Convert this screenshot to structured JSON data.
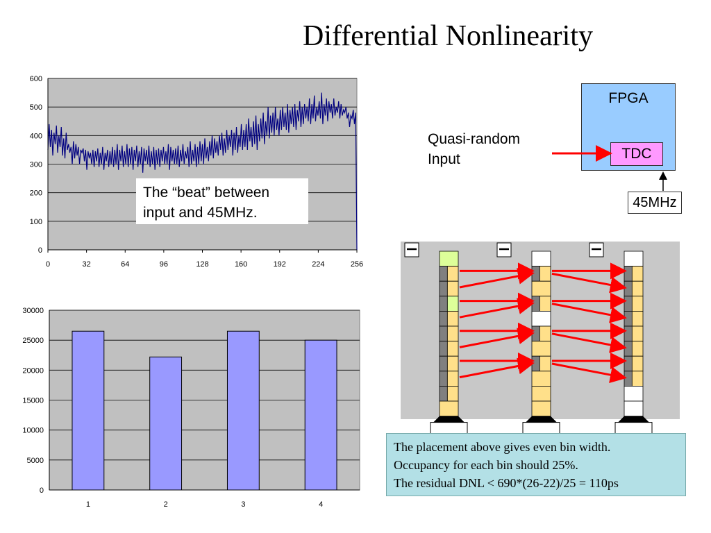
{
  "title": "Differential Nonlinearity",
  "beat_note": [
    "The “beat” between",
    "input and 45MHz."
  ],
  "fpga": {
    "label": "FPGA",
    "tdc_label": "TDC",
    "clock_label": "45MHz",
    "input_label": [
      "Quasi-random",
      "Input"
    ]
  },
  "explanation": [
    "The placement above gives even bin width.",
    "Occupancy for each bin should 25%.",
    "The residual DNL < 690*(26-22)/25 = 110ps"
  ],
  "colors": {
    "plot_bg": "#c0c0c0",
    "line": "#000080",
    "bar": "#9999ff",
    "arrow": "#ff0000",
    "fpga": "#99ccff",
    "tdc": "#ff99ff",
    "cell_yellow": "#ffe08a",
    "cell_green": "#ddff99",
    "cell_gray": "#808080",
    "note_bg": "#b3e0e6",
    "panel_bg": "#c8c8c8"
  },
  "chart_data": [
    {
      "type": "line",
      "title": "",
      "xlabel": "",
      "ylabel": "",
      "xlim": [
        0,
        256
      ],
      "ylim": [
        0,
        600
      ],
      "xticks": [
        "0",
        "32",
        "64",
        "96",
        "128",
        "160",
        "192",
        "224",
        "256"
      ],
      "yticks": [
        "0",
        "100",
        "200",
        "300",
        "400",
        "500",
        "600"
      ],
      "grid": true,
      "series": [
        {
          "values": [
            350,
            440,
            360,
            420,
            330,
            410,
            370,
            435,
            340,
            400,
            360,
            430,
            330,
            390,
            320,
            410,
            350,
            370,
            340,
            360,
            300,
            380,
            320,
            370,
            330,
            360,
            300,
            350,
            340,
            355,
            310,
            350,
            280,
            345,
            320,
            340,
            300,
            350,
            290,
            345,
            310,
            355,
            290,
            340,
            300,
            360,
            280,
            340,
            310,
            350,
            290,
            345,
            300,
            360,
            290,
            350,
            300,
            370,
            280,
            350,
            310,
            365,
            290,
            345,
            300,
            370,
            290,
            355,
            300,
            360,
            280,
            350,
            310,
            365,
            290,
            345,
            300,
            360,
            270,
            355,
            310,
            350,
            300,
            365,
            290,
            345,
            300,
            360,
            280,
            350,
            300,
            355,
            290,
            350,
            310,
            360,
            300,
            345,
            300,
            370,
            280,
            360,
            310,
            350,
            300,
            355,
            300,
            365,
            290,
            350,
            310,
            370,
            300,
            345,
            320,
            360,
            290,
            380,
            300,
            350,
            310,
            370,
            290,
            360,
            300,
            380,
            310,
            370,
            300,
            390,
            320,
            360,
            310,
            380,
            330,
            400,
            320,
            390,
            340,
            380,
            330,
            400,
            350,
            410,
            330,
            390,
            340,
            420,
            350,
            400,
            360,
            420,
            330,
            410,
            350,
            430,
            340,
            400,
            360,
            440,
            350,
            420,
            360,
            440,
            350,
            460,
            380,
            430,
            360,
            450,
            370,
            470,
            350,
            440,
            380,
            460,
            390,
            480,
            370,
            450,
            400,
            500,
            390,
            470,
            410,
            480,
            400,
            500,
            420,
            460,
            400,
            490,
            420,
            500,
            430,
            480,
            420,
            510,
            410,
            490,
            440,
            500,
            430,
            510,
            420,
            490,
            450,
            520,
            430,
            500,
            440,
            510,
            460,
            500,
            450,
            530,
            440,
            510,
            460,
            540,
            450,
            500,
            470,
            520,
            460,
            550,
            440,
            510,
            470,
            530,
            450,
            520,
            480,
            510,
            460,
            530,
            470,
            500,
            480,
            520,
            460,
            510,
            470,
            490,
            480,
            500,
            460,
            480,
            430,
            470,
            460,
            490,
            440,
            480,
            0
          ]
        }
      ]
    },
    {
      "type": "bar",
      "title": "",
      "xlabel": "",
      "ylabel": "",
      "categories": [
        "1",
        "2",
        "3",
        "4"
      ],
      "values": [
        26500,
        22200,
        26500,
        25000
      ],
      "ylim": [
        0,
        30000
      ],
      "yticks": [
        "0",
        "5000",
        "10000",
        "15000",
        "20000",
        "25000",
        "30000"
      ],
      "grid": true
    }
  ]
}
